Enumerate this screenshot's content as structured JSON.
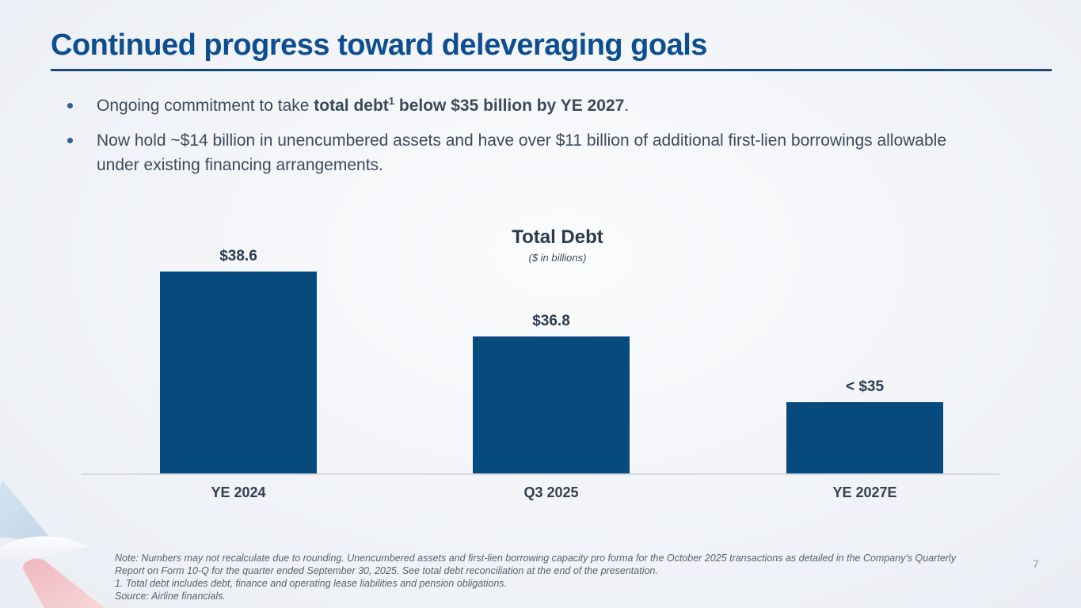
{
  "slide": {
    "title": "Continued progress toward deleveraging goals",
    "page_number": "7",
    "bullets": {
      "b1_pre": "Ongoing commitment to take ",
      "b1_bold": "total debt",
      "b1_sup": "1",
      "b1_bold2": " below $35 billion by YE 2027",
      "b1_post": ".",
      "b2_text": "Now hold ~$14 billion in unencumbered assets and have over $11 billion of additional first-lien borrowings allowable under existing financing arrangements."
    },
    "footnotes": [
      "Note: Numbers may not recalculate due to rounding. Unencumbered assets and first-lien borrowing capacity pro forma for the October 2025 transactions as detailed in the Company's Quarterly",
      "Report on Form 10-Q for the quarter ended September 30, 2025. See total debt reconciliation at the end of the presentation.",
      "1. Total debt includes debt, finance and operating lease liabilities and pension obligations.",
      "Source: Airline financials."
    ]
  },
  "chart_data": {
    "type": "bar",
    "title": "Total Debt",
    "subtitle": "($ in billions)",
    "categories": [
      "YE 2024",
      "Q3 2025",
      "YE 2027E"
    ],
    "values": [
      38.6,
      36.8,
      34.95
    ],
    "value_labels": [
      "$38.6",
      "$36.8",
      "< $35"
    ],
    "ylim": [
      32.9,
      39.5
    ],
    "bar_color": "#074a7e",
    "grid": false,
    "legend": false,
    "xlabel": "",
    "ylabel": ""
  },
  "colors": {
    "title_blue": "#0d4e90",
    "rule_blue": "#17497f",
    "bar_blue": "#074a7e",
    "body_slate": "#3d4a5a",
    "footnote_gray": "#59626f"
  }
}
